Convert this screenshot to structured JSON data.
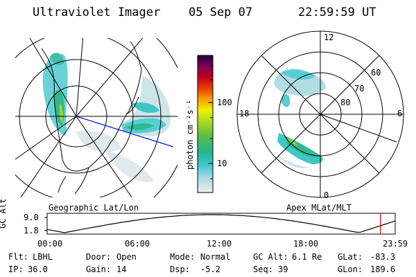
{
  "header": {
    "instrument": "Ultraviolet Imager",
    "date": "05 Sep 07",
    "time": "22:59:59 UT"
  },
  "left_map": {
    "label": "Geographic Lat/Lon"
  },
  "right_map": {
    "label": "Apex MLat/MLT",
    "mlt_labels": {
      "top": "12",
      "left": "18",
      "right": "6",
      "bottom": "0"
    },
    "lat_labels": [
      "60",
      "70",
      "80"
    ]
  },
  "colorbar": {
    "unit_label": "photon cm⁻²s⁻¹",
    "ticks": [
      "100",
      "10"
    ],
    "colors": [
      "#d8e8ea",
      "#a8d8e0",
      "#40c8d0",
      "#20b090",
      "#60c040",
      "#a0d820",
      "#e8e800",
      "#f8a000",
      "#e84000",
      "#c00020",
      "#800040",
      "#200040"
    ]
  },
  "altitude_plot": {
    "axis_label": "GC Alt",
    "ymax_label": "9.0",
    "ymin_label": "1.8",
    "time_ticks": [
      "00:00",
      "06:00",
      "12:00",
      "18:00",
      "23:59"
    ],
    "current_marker_hour": 22.9833
  },
  "info": {
    "filter_label": "Flt:",
    "filter_value": "LBHL",
    "ip_label": "IP:",
    "ip_value": "36.0",
    "door_label": "Door:",
    "door_value": "Open",
    "gain_label": "Gain:",
    "gain_value": "14",
    "mode_label": "Mode:",
    "mode_value": "Normal",
    "dsp_label": "Dsp:",
    "dsp_value": "-5.2",
    "gcalt_label": "GC Alt:",
    "gcalt_value": "6.1 Re",
    "seq_label": "Seq:",
    "seq_value": "39",
    "glat_label": "GLat:",
    "glat_value": "-83.3",
    "glon_label": "GLon:",
    "glon_value": "189.6"
  }
}
